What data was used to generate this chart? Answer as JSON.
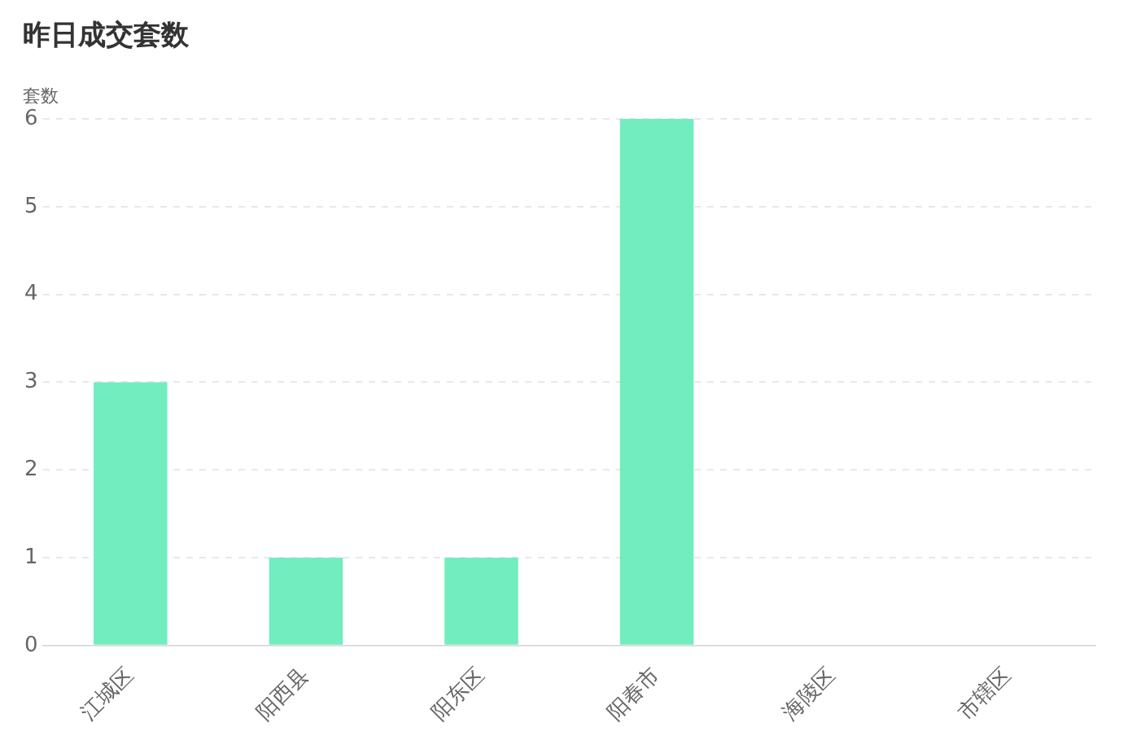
{
  "chart_data": {
    "type": "bar",
    "title": "昨日成交套数",
    "ylabel": "套数",
    "categories": [
      "江城区",
      "阳西县",
      "阳东区",
      "阳春市",
      "海陵区",
      "市辖区"
    ],
    "values": [
      3,
      1,
      1,
      6,
      0,
      0
    ],
    "color": "#72edc0",
    "ylim": [
      0,
      6
    ],
    "yticks": [
      0,
      1,
      2,
      3,
      4,
      5,
      6
    ],
    "grid": "y",
    "legend": false
  }
}
